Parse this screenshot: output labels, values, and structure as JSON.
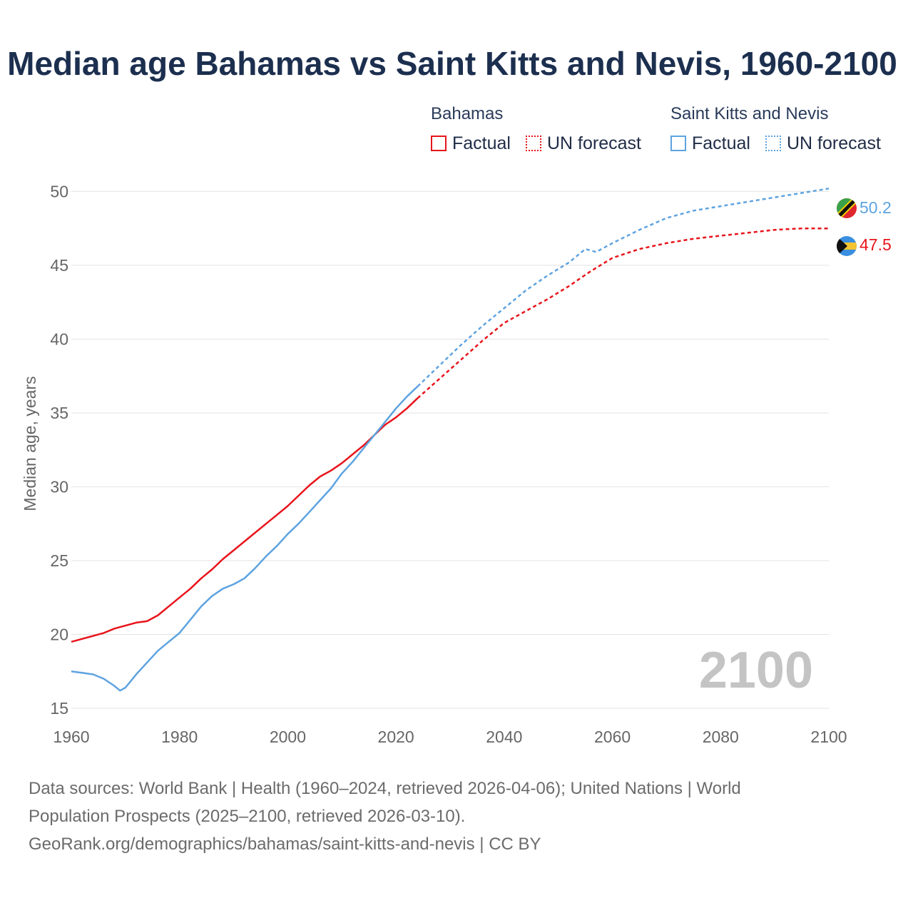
{
  "chart_data": {
    "type": "line",
    "title": "Median age Bahamas vs Saint Kitts and Nevis, 1960-2100",
    "xlabel": "",
    "ylabel": "Median age, years",
    "xlim": [
      1960,
      2100
    ],
    "ylim": [
      15,
      52
    ],
    "x_ticks": [
      1960,
      1980,
      2000,
      2020,
      2040,
      2060,
      2080,
      2100
    ],
    "y_ticks": [
      15,
      20,
      25,
      30,
      35,
      40,
      45,
      50
    ],
    "grid": true,
    "legend_position": "top-right",
    "year_label": "2100",
    "series": [
      {
        "name": "Bahamas",
        "color": "#e8141b",
        "end_label": "47.5",
        "flag": "bahamas-flag",
        "factual": {
          "label": "Factual",
          "x": [
            1960,
            1962,
            1964,
            1966,
            1968,
            1970,
            1972,
            1974,
            1976,
            1978,
            1980,
            1982,
            1984,
            1986,
            1988,
            1990,
            1992,
            1994,
            1996,
            1998,
            2000,
            2002,
            2004,
            2006,
            2008,
            2010,
            2012,
            2014,
            2016,
            2018,
            2020,
            2022,
            2024
          ],
          "y": [
            19.5,
            19.7,
            19.9,
            20.1,
            20.4,
            20.6,
            20.8,
            20.9,
            21.3,
            21.9,
            22.5,
            23.1,
            23.8,
            24.4,
            25.1,
            25.7,
            26.3,
            26.9,
            27.5,
            28.1,
            28.7,
            29.4,
            30.1,
            30.7,
            31.1,
            31.6,
            32.2,
            32.8,
            33.5,
            34.2,
            34.7,
            35.3,
            36.0
          ]
        },
        "forecast": {
          "label": "UN forecast",
          "x": [
            2024,
            2028,
            2032,
            2036,
            2040,
            2044,
            2048,
            2052,
            2056,
            2060,
            2065,
            2070,
            2075,
            2080,
            2085,
            2090,
            2095,
            2100
          ],
          "y": [
            36.0,
            37.3,
            38.6,
            39.9,
            41.1,
            41.9,
            42.7,
            43.6,
            44.6,
            45.5,
            46.1,
            46.5,
            46.8,
            47.0,
            47.2,
            47.4,
            47.5,
            47.5
          ]
        }
      },
      {
        "name": "Saint Kitts and Nevis",
        "color": "#5ea3e0",
        "end_label": "50.2",
        "flag": "saint-kitts-and-nevis-flag",
        "factual": {
          "label": "Factual",
          "x": [
            1960,
            1962,
            1964,
            1966,
            1968,
            1969,
            1970,
            1972,
            1974,
            1976,
            1978,
            1980,
            1982,
            1984,
            1986,
            1988,
            1990,
            1992,
            1994,
            1996,
            1998,
            2000,
            2002,
            2004,
            2006,
            2008,
            2010,
            2012,
            2014,
            2016,
            2018,
            2020,
            2022,
            2024
          ],
          "y": [
            17.5,
            17.4,
            17.3,
            17.0,
            16.5,
            16.2,
            16.4,
            17.3,
            18.1,
            18.9,
            19.5,
            20.1,
            21.0,
            21.9,
            22.6,
            23.1,
            23.4,
            23.8,
            24.5,
            25.3,
            26.0,
            26.8,
            27.5,
            28.3,
            29.1,
            29.9,
            30.9,
            31.7,
            32.6,
            33.5,
            34.4,
            35.3,
            36.1,
            36.8
          ]
        },
        "forecast": {
          "label": "UN forecast",
          "x": [
            2024,
            2028,
            2032,
            2036,
            2040,
            2044,
            2048,
            2052,
            2055,
            2057,
            2060,
            2065,
            2070,
            2075,
            2080,
            2085,
            2090,
            2095,
            2100
          ],
          "y": [
            36.8,
            38.2,
            39.6,
            40.9,
            42.1,
            43.3,
            44.3,
            45.2,
            46.1,
            45.9,
            46.5,
            47.4,
            48.2,
            48.7,
            49.0,
            49.3,
            49.6,
            49.9,
            50.2
          ]
        }
      }
    ]
  },
  "legend": {
    "group1_title": "Bahamas",
    "group2_title": "Saint Kitts and Nevis",
    "factual_label": "Factual",
    "forecast_label": "UN forecast"
  },
  "sources": {
    "line1": "Data sources: World Bank | Health (1960–2024, retrieved 2026-04-06); United Nations | World",
    "line2": "Population Prospects (2025–2100, retrieved 2026-03-10).",
    "line3": "GeoRank.org/demographics/bahamas/saint-kitts-and-nevis | CC BY"
  }
}
